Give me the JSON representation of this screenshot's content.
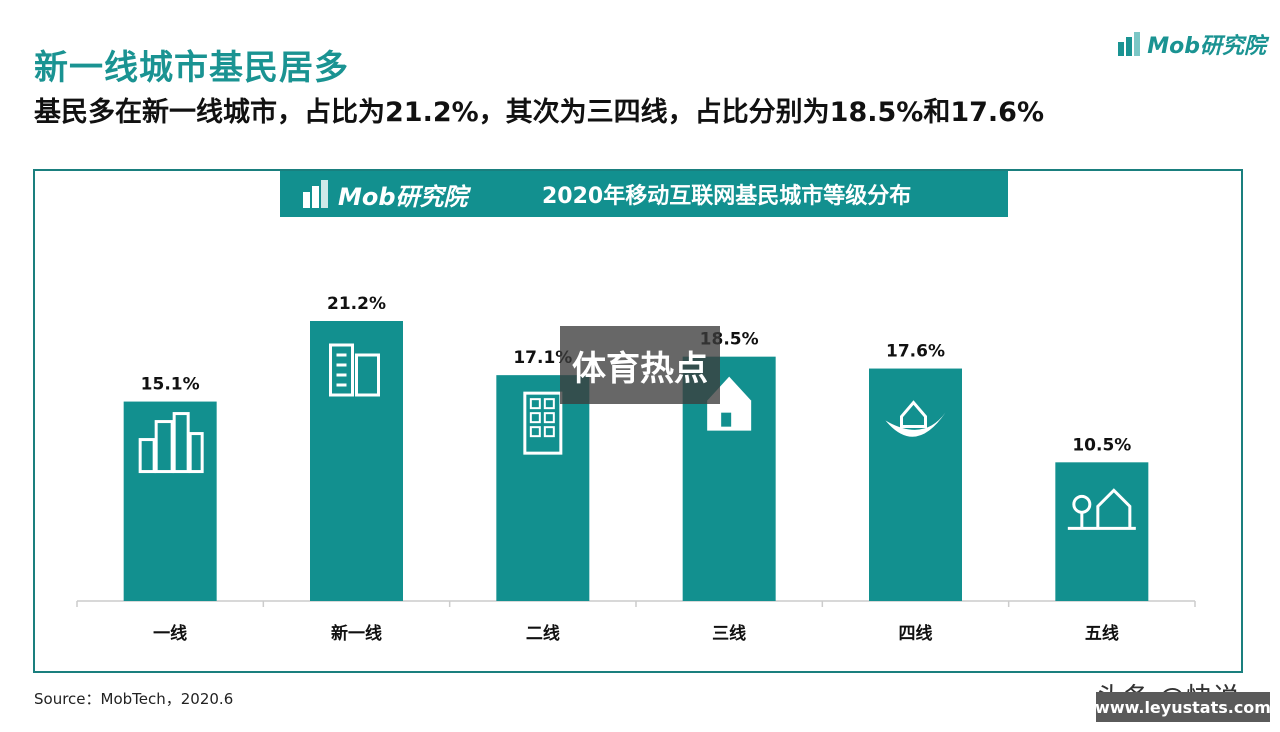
{
  "header": {
    "title": "新一线城市基民居多",
    "subtitle": "基民多在新一线城市，占比为21.2%，其次为三四线，占比分别为18.5%和17.6%",
    "brand": "Mob研究院"
  },
  "banner": {
    "logo_text": "Mob研究院",
    "title": "2020年移动互联网基民城市等级分布"
  },
  "chart_data": {
    "type": "bar",
    "title": "2020年移动互联网基民城市等级分布",
    "categories": [
      "一线",
      "新一线",
      "二线",
      "三线",
      "四线",
      "五线"
    ],
    "values": [
      15.1,
      21.2,
      17.1,
      18.5,
      17.6,
      10.5
    ],
    "value_labels": [
      "15.1%",
      "21.2%",
      "17.1%",
      "18.5%",
      "17.6%",
      "10.5%"
    ],
    "icons": [
      "city-skyline-icon",
      "office-towers-icon",
      "apartment-building-icon",
      "house-icon",
      "leaf-house-icon",
      "tree-house-icon"
    ],
    "ylim": [
      0,
      25
    ],
    "grid": false,
    "bar_color": "#12908f"
  },
  "footer": {
    "source": "Source：MobTech，2020.6"
  },
  "overlays": {
    "center_badge": "体育热点",
    "watermark_text": "头条 @快说",
    "watermark_url": "www.leyustats.com"
  },
  "colors": {
    "accent": "#1a9392",
    "bar": "#12908f",
    "frame": "#1a7f7e"
  }
}
